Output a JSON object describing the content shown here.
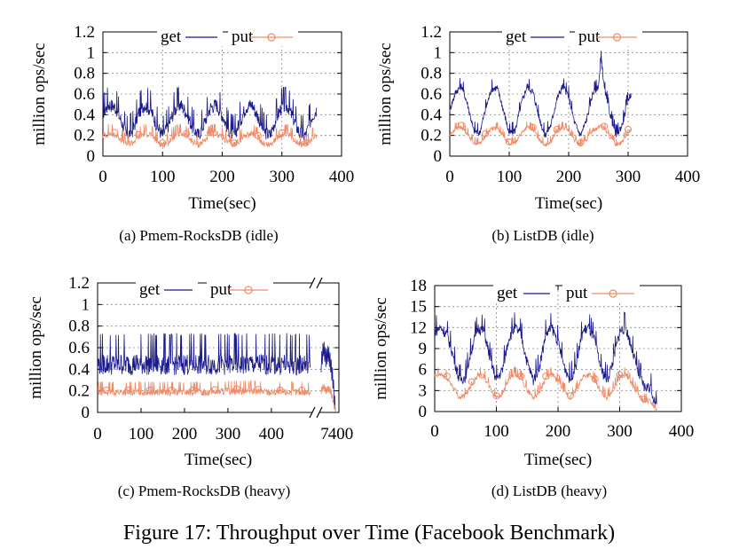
{
  "figure_caption": "Figure 17: Throughput over Time (Facebook Benchmark)",
  "colors": {
    "get": "#1a1a8c",
    "put": "#f08a66",
    "axis": "#000000",
    "grid": "#888888"
  },
  "chart_data": [
    {
      "id": "a",
      "type": "line",
      "caption": "(a)  Pmem-RocksDB (idle)",
      "xlabel": "Time(sec)",
      "ylabel": "million ops/sec",
      "xlim": [
        0,
        400
      ],
      "ylim": [
        0,
        1.2
      ],
      "xticks": [
        0,
        100,
        200,
        300,
        400
      ],
      "xtick_labels": [
        "0",
        "100",
        "200",
        "300",
        "400"
      ],
      "yticks": [
        0,
        0.2,
        0.4,
        0.6,
        0.8,
        1,
        1.2
      ],
      "ytick_labels": [
        "0",
        "0.2",
        "0.4",
        "0.6",
        "0.8",
        "1",
        "1.2"
      ],
      "grid": true,
      "legend": "top",
      "series": [
        {
          "name": "get",
          "marker": "none",
          "x": [
            0,
            10,
            20,
            30,
            40,
            50,
            60,
            70,
            80,
            90,
            100,
            110,
            120,
            130,
            140,
            150,
            160,
            170,
            180,
            190,
            200,
            210,
            220,
            230,
            240,
            250,
            260,
            270,
            280,
            290,
            300,
            310,
            320,
            330,
            340,
            350,
            358
          ],
          "y": [
            0.42,
            0.5,
            0.48,
            0.35,
            0.2,
            0.25,
            0.42,
            0.5,
            0.45,
            0.3,
            0.2,
            0.3,
            0.45,
            0.5,
            0.42,
            0.28,
            0.2,
            0.32,
            0.47,
            0.5,
            0.4,
            0.26,
            0.2,
            0.34,
            0.48,
            0.5,
            0.38,
            0.24,
            0.2,
            0.36,
            0.48,
            0.48,
            0.35,
            0.22,
            0.2,
            0.38,
            0.45
          ],
          "spike_amplitude": 0.1
        },
        {
          "name": "put",
          "marker": "circle",
          "x": [
            0,
            10,
            20,
            30,
            40,
            50,
            60,
            70,
            80,
            90,
            100,
            110,
            120,
            130,
            140,
            150,
            160,
            170,
            180,
            190,
            200,
            210,
            220,
            230,
            240,
            250,
            260,
            270,
            280,
            290,
            300,
            310,
            320,
            330,
            340,
            350,
            358
          ],
          "y": [
            0.2,
            0.22,
            0.21,
            0.17,
            0.12,
            0.13,
            0.19,
            0.22,
            0.21,
            0.15,
            0.11,
            0.14,
            0.2,
            0.22,
            0.2,
            0.14,
            0.11,
            0.15,
            0.21,
            0.22,
            0.19,
            0.13,
            0.11,
            0.16,
            0.21,
            0.22,
            0.18,
            0.12,
            0.11,
            0.17,
            0.21,
            0.21,
            0.17,
            0.12,
            0.11,
            0.17,
            0.2
          ],
          "spike_amplitude": 0.05
        }
      ]
    },
    {
      "id": "b",
      "type": "line",
      "caption": "(b)  ListDB (idle)",
      "xlabel": "Time(sec)",
      "ylabel": "million ops/sec",
      "xlim": [
        0,
        400
      ],
      "ylim": [
        0,
        1.2
      ],
      "xticks": [
        0,
        100,
        200,
        300,
        400
      ],
      "xtick_labels": [
        "0",
        "100",
        "200",
        "300",
        "400"
      ],
      "yticks": [
        0,
        0.2,
        0.4,
        0.6,
        0.8,
        1,
        1.2
      ],
      "ytick_labels": [
        "0",
        "0.2",
        "0.4",
        "0.6",
        "0.8",
        "1",
        "1.2"
      ],
      "grid": true,
      "legend": "top",
      "series": [
        {
          "name": "get",
          "marker": "none",
          "x": [
            0,
            10,
            20,
            30,
            40,
            50,
            60,
            70,
            80,
            90,
            100,
            110,
            120,
            130,
            140,
            150,
            160,
            170,
            180,
            190,
            200,
            210,
            220,
            230,
            240,
            250,
            255,
            260,
            270,
            280,
            290,
            300,
            305
          ],
          "y": [
            0.45,
            0.62,
            0.68,
            0.5,
            0.25,
            0.22,
            0.45,
            0.65,
            0.66,
            0.45,
            0.22,
            0.25,
            0.5,
            0.68,
            0.62,
            0.38,
            0.2,
            0.3,
            0.55,
            0.68,
            0.58,
            0.32,
            0.2,
            0.35,
            0.6,
            0.68,
            0.95,
            0.65,
            0.4,
            0.2,
            0.3,
            0.55,
            0.6
          ],
          "spike_amplitude": 0.05
        },
        {
          "name": "put",
          "marker": "circle",
          "x": [
            0,
            10,
            20,
            30,
            40,
            50,
            60,
            70,
            80,
            90,
            100,
            110,
            120,
            130,
            140,
            150,
            160,
            170,
            180,
            190,
            200,
            210,
            220,
            230,
            240,
            250,
            255,
            260,
            270,
            280,
            290,
            300,
            305
          ],
          "y": [
            0.2,
            0.27,
            0.28,
            0.22,
            0.13,
            0.12,
            0.2,
            0.27,
            0.27,
            0.2,
            0.12,
            0.13,
            0.22,
            0.28,
            0.26,
            0.17,
            0.11,
            0.14,
            0.24,
            0.28,
            0.25,
            0.15,
            0.11,
            0.16,
            0.25,
            0.28,
            0.3,
            0.27,
            0.18,
            0.11,
            0.14,
            0.24,
            0.25
          ],
          "spike_amplitude": 0.03
        }
      ]
    },
    {
      "id": "c",
      "type": "line",
      "caption": "(c)  Pmem-RocksDB (heavy)",
      "xlabel": "Time(sec)",
      "ylabel": "million ops/sec",
      "xlim": [
        0,
        490
      ],
      "ylim": [
        0,
        1.2
      ],
      "xticks": [
        0,
        100,
        200,
        300,
        400
      ],
      "xtick_labels": [
        "0",
        "100",
        "200",
        "300",
        "400"
      ],
      "right_ticks": [
        "7",
        "400"
      ],
      "axis_break": true,
      "yticks": [
        0,
        0.2,
        0.4,
        0.6,
        0.8,
        1,
        1.2
      ],
      "ytick_labels": [
        "0",
        "0.2",
        "0.4",
        "0.6",
        "0.8",
        "1",
        "1.2"
      ],
      "grid": true,
      "legend": "top",
      "series": [
        {
          "name": "get",
          "marker": "none",
          "x": [
            0,
            50,
            100,
            150,
            200,
            250,
            300,
            350,
            400,
            450,
            490
          ],
          "y": [
            0.45,
            0.45,
            0.45,
            0.45,
            0.45,
            0.45,
            0.45,
            0.45,
            0.45,
            0.45,
            0.45
          ],
          "spike_amplitude": 0.15
        },
        {
          "name": "put",
          "marker": "circle",
          "x": [
            0,
            50,
            100,
            150,
            200,
            250,
            300,
            350,
            400,
            450,
            490
          ],
          "y": [
            0.19,
            0.19,
            0.19,
            0.19,
            0.19,
            0.19,
            0.2,
            0.2,
            0.19,
            0.19,
            0.19
          ],
          "spike_amplitude": 0.05
        }
      ],
      "tail_series": [
        {
          "name": "get",
          "y": [
            0.45,
            0.6,
            0.5,
            0.55,
            0.45,
            0.3,
            0
          ]
        },
        {
          "name": "put",
          "y": [
            0.2,
            0.24,
            0.2,
            0.22,
            0.2,
            0.12,
            0
          ]
        }
      ]
    },
    {
      "id": "d",
      "type": "line",
      "caption": "(d)  ListDB (heavy)",
      "xlabel": "Time(sec)",
      "ylabel": "million ops/sec",
      "xlim": [
        0,
        400
      ],
      "ylim": [
        0,
        18
      ],
      "xticks": [
        0,
        100,
        200,
        300,
        400
      ],
      "xtick_labels": [
        "0",
        "100",
        "200",
        "300",
        "400"
      ],
      "yticks": [
        0,
        3,
        6,
        9,
        12,
        15,
        18
      ],
      "ytick_labels": [
        "0",
        "3",
        "6",
        "9",
        "12",
        "15",
        "18"
      ],
      "grid": true,
      "legend": "top",
      "series": [
        {
          "name": "get",
          "marker": "none",
          "x": [
            0,
            10,
            20,
            30,
            40,
            50,
            60,
            70,
            80,
            90,
            100,
            110,
            120,
            130,
            140,
            150,
            160,
            170,
            180,
            190,
            200,
            210,
            220,
            230,
            240,
            250,
            260,
            270,
            280,
            290,
            300,
            310,
            320,
            330,
            340,
            350,
            360
          ],
          "y": [
            11.5,
            12,
            11,
            8,
            4.5,
            5,
            9,
            12,
            11.5,
            7.5,
            4.5,
            6,
            10.5,
            12,
            11,
            7,
            4.5,
            6.5,
            11,
            12,
            10,
            6.5,
            4.5,
            7,
            11.5,
            12,
            10,
            6,
            4.5,
            7.5,
            11.5,
            12,
            9,
            5.5,
            3.5,
            3.5,
            0.5
          ],
          "spike_amplitude": 1.2
        },
        {
          "name": "put",
          "marker": "circle",
          "x": [
            0,
            10,
            20,
            30,
            40,
            50,
            60,
            70,
            80,
            90,
            100,
            110,
            120,
            130,
            140,
            150,
            160,
            170,
            180,
            190,
            200,
            210,
            220,
            230,
            240,
            250,
            260,
            270,
            280,
            290,
            300,
            310,
            320,
            330,
            340,
            350,
            360
          ],
          "y": [
            5,
            5.3,
            4.8,
            3.5,
            2,
            2.3,
            4,
            5.3,
            5,
            3.3,
            2,
            2.6,
            4.6,
            5.3,
            4.8,
            3.1,
            2,
            2.9,
            4.8,
            5.3,
            4.4,
            2.9,
            2,
            3.1,
            5,
            5.3,
            4.4,
            2.7,
            2,
            3.3,
            5,
            5.3,
            4,
            2.4,
            1.5,
            1.5,
            0.3
          ],
          "spike_amplitude": 0.6
        }
      ]
    }
  ]
}
